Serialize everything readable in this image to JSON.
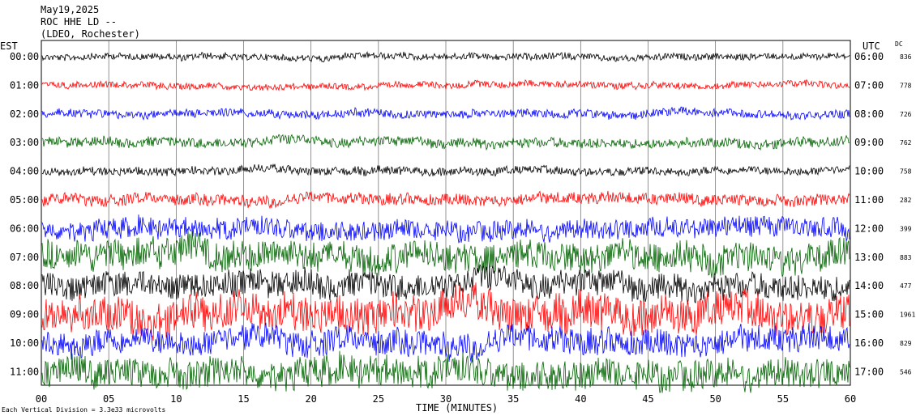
{
  "header": {
    "date": "May19,2025",
    "station": "ROC HHE LD --",
    "network": "(LDEO, Rochester)"
  },
  "labels": {
    "left_zone": "EST",
    "right_zone": "UTC",
    "dc_header": "DC",
    "xlabel": "TIME (MINUTES)",
    "footer": "Each Vertical Division =  3.3e33 microvolts"
  },
  "chart_data": {
    "type": "line",
    "xlim": [
      0,
      60
    ],
    "x_ticks": [
      "00",
      "05",
      "10",
      "15",
      "20",
      "25",
      "30",
      "35",
      "40",
      "45",
      "50",
      "55",
      "60"
    ],
    "left_hours": [
      "00:00",
      "01:00",
      "02:00",
      "03:00",
      "04:00",
      "05:00",
      "06:00",
      "07:00",
      "08:00",
      "09:00",
      "10:00",
      "11:00"
    ],
    "right_hours": [
      "06:00",
      "07:00",
      "08:00",
      "09:00",
      "10:00",
      "11:00",
      "12:00",
      "13:00",
      "14:00",
      "15:00",
      "16:00",
      "17:00"
    ],
    "dc_values": [
      "836",
      "778",
      "726",
      "762",
      "758",
      "282",
      "399",
      "883",
      "477",
      "1961",
      "829",
      "546"
    ],
    "trace_colors": [
      "#000000",
      "#ff0000",
      "#0000ff",
      "#006400"
    ],
    "trace_amplitude": [
      4,
      4,
      5,
      6,
      5,
      7,
      12,
      18,
      16,
      22,
      16,
      18
    ],
    "grid": true
  }
}
